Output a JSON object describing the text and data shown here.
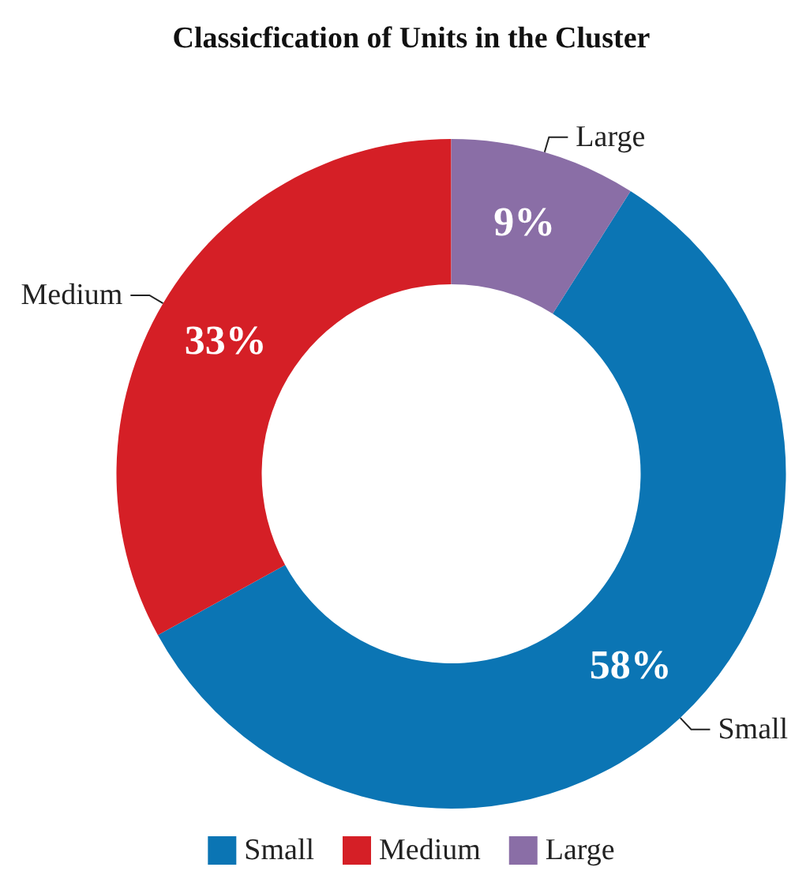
{
  "chart_data": {
    "type": "donut",
    "title": "Classicfication of Units in the Cluster",
    "categories": [
      "Small",
      "Medium",
      "Large"
    ],
    "values": [
      58,
      33,
      9
    ],
    "colors": [
      "#0b75b4",
      "#d51f26",
      "#8a6ea6"
    ],
    "value_labels": [
      "58%",
      "33%",
      "9%"
    ],
    "legend": "bottom"
  }
}
